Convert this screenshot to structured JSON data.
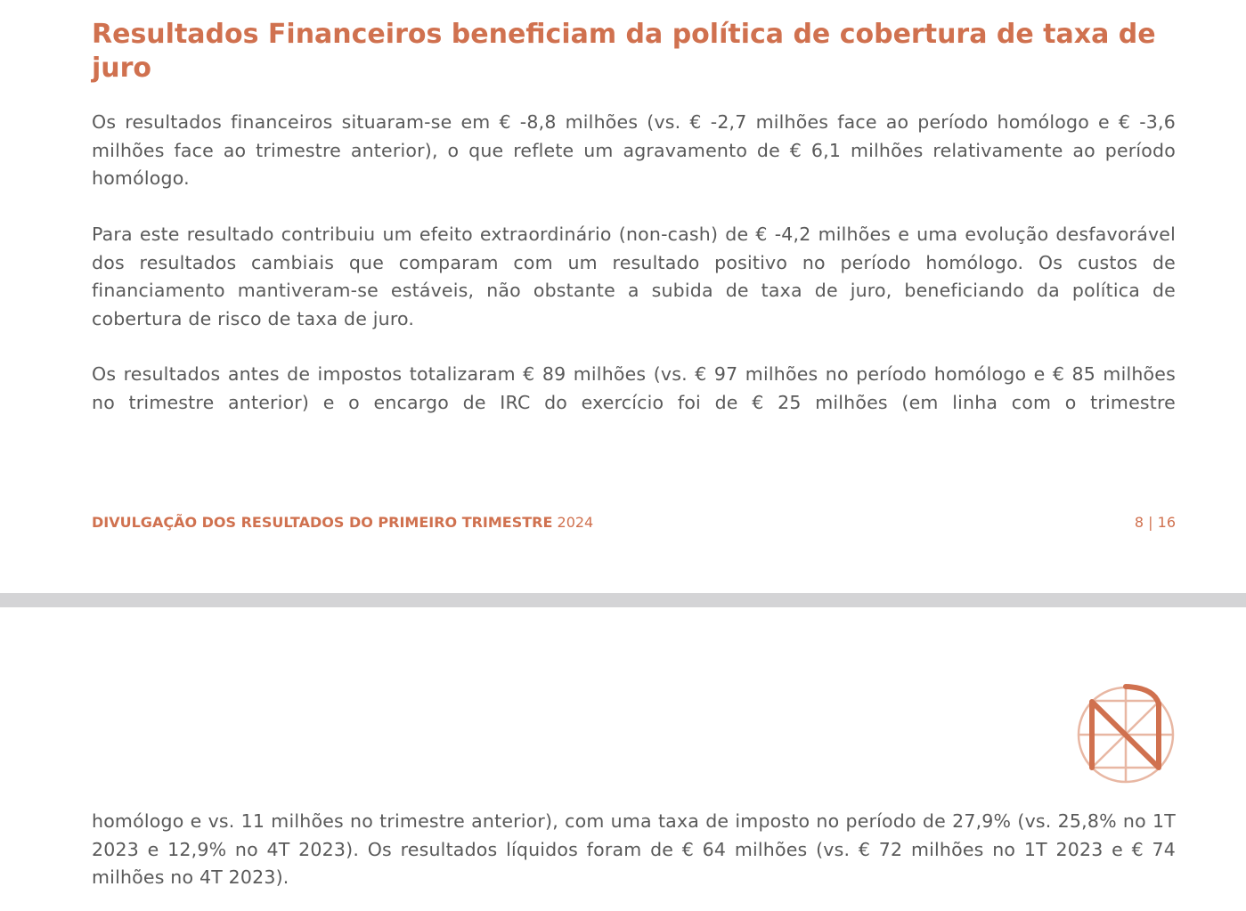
{
  "page1": {
    "title": "Resultados Financeiros beneficiam da política de cobertura de taxa de juro",
    "paragraphs": [
      "Os resultados financeiros situaram-se em € -8,8 milhões (vs. € -2,7 milhões face ao período homólogo e € -3,6 milhões face ao trimestre anterior), o que reflete um agravamento de € 6,1 milhões relativamente ao período homólogo.",
      "Para este resultado contribuiu um efeito extraordinário (non-cash) de € -4,2 milhões e uma evolução desfavorável dos resultados cambiais que comparam com um resultado positivo no período homólogo. Os custos de financiamento mantiveram-se estáveis, não obstante a subida de taxa de juro, beneficiando da política de cobertura de risco de taxa de juro.",
      "Os resultados antes de impostos totalizaram € 89 milhões (vs. € 97 milhões no período homólogo e € 85 milhões no trimestre anterior) e o encargo de IRC do exercício foi de € 25 milhões (em linha com o trimestre"
    ],
    "footer": {
      "label": "DIVULGAÇÃO DOS RESULTADOS DO PRIMEIRO TRIMESTRE",
      "year": "2024",
      "page": "8 | 16"
    }
  },
  "page2": {
    "paragraph": "homólogo e vs. 11 milhões no trimestre anterior), com uma taxa de imposto no período de 27,9% (vs. 25,8% no 1T 2023 e 12,9% no 4T 2023). Os resultados líquidos foram de € 64 milhões (vs. € 72 milhões no 1T 2023 e € 74 milhões no 4T 2023).",
    "logo": "navigator-n-logo"
  },
  "colors": {
    "accent": "#d0714f",
    "text": "#595959",
    "page_gap": "#d4d4d6"
  }
}
